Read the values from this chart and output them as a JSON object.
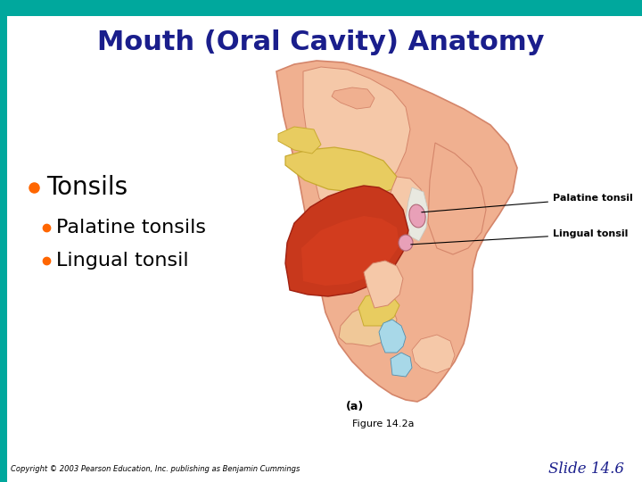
{
  "title": "Mouth (Oral Cavity) Anatomy",
  "title_color": "#1a1e8c",
  "title_fontsize": 22,
  "background_color": "#ffffff",
  "teal_color": "#00a89d",
  "bullet_color": "#ff6600",
  "bullet1_text": "Tonsils",
  "bullet1_fontsize": 20,
  "bullet2_text": "Palatine tonsils",
  "bullet2_fontsize": 16,
  "bullet3_text": "Lingual tonsil",
  "bullet3_fontsize": 16,
  "figure_caption": "Figure 14.2a",
  "figure_caption_fontsize": 8,
  "label_a_text": "(a)",
  "label_a_fontsize": 9,
  "copyright_text": "Copyright © 2003 Pearson Education, Inc. publishing as Benjamin Cummings",
  "copyright_fontsize": 6,
  "slide_num_text": "Slide 14.6",
  "slide_num_fontsize": 12,
  "slide_num_color": "#1a1e8c",
  "palatine_label": "Palatine tonsil",
  "lingual_label": "Lingual tonsil",
  "label_fontsize": 8,
  "skin_color": "#f0b090",
  "skin_edge": "#d4856a",
  "skin_light": "#f5c8a8",
  "tongue_color": "#c8381c",
  "tongue_mid": "#d94020",
  "palate_yellow": "#e8cc60",
  "palate_yellow_edge": "#c8aa30",
  "throat_color": "#f0c898",
  "blue_tissue": "#a8d8e8",
  "pink_tonsil": "#e8a0b8",
  "white_tissue": "#e8e8e0",
  "gray_tissue": "#c8c8c0"
}
